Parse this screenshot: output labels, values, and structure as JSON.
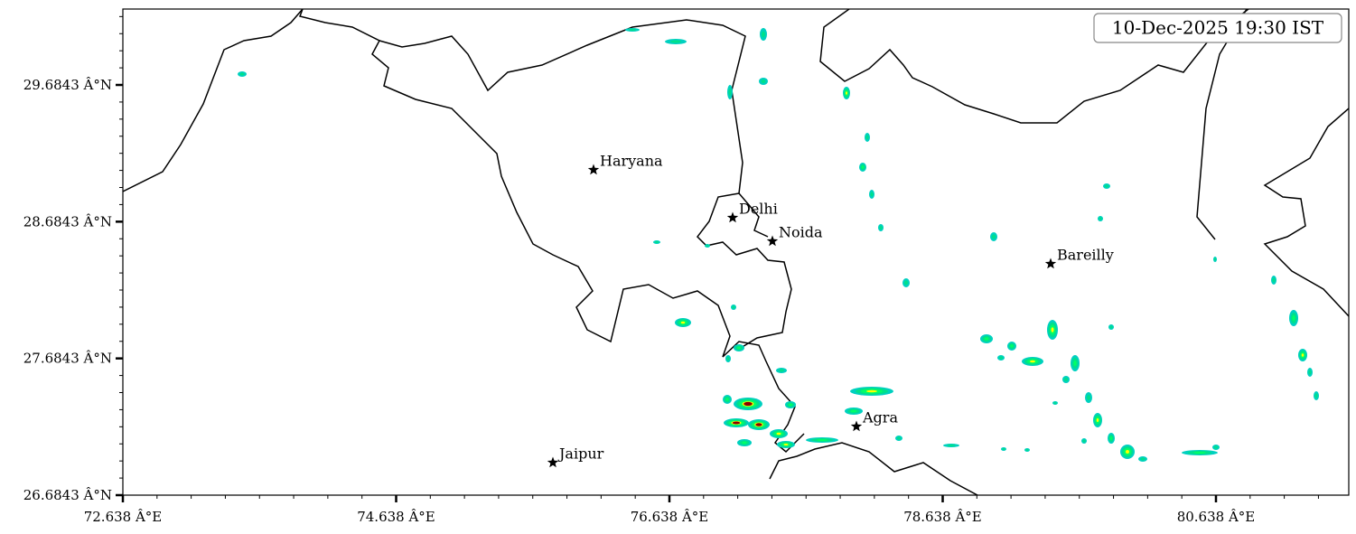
{
  "map": {
    "timestamp": "10-Dec-2025 19:30 IST",
    "cities": [
      {
        "name": "Haryana"
      },
      {
        "name": "Delhi"
      },
      {
        "name": "Noida"
      },
      {
        "name": "Bareilly"
      },
      {
        "name": "Agra"
      },
      {
        "name": "Jaipur"
      }
    ],
    "xlim": [
      72.638,
      81.61
    ],
    "ylim": [
      26.6843,
      30.2394
    ],
    "xticks": [
      {
        "value": 72.638,
        "label": "72.638 Â°E"
      },
      {
        "value": 74.638,
        "label": "74.638 Â°E"
      },
      {
        "value": 76.638,
        "label": "76.638 Â°E"
      },
      {
        "value": 78.638,
        "label": "78.638 Â°E"
      },
      {
        "value": 80.638,
        "label": "80.638 Â°E"
      }
    ],
    "yticks": [
      {
        "value": 26.6843,
        "label": "26.6843 Â°N"
      },
      {
        "value": 27.6843,
        "label": "27.6843 Â°N"
      },
      {
        "value": 28.6843,
        "label": "28.6843 Â°N"
      },
      {
        "value": 29.6843,
        "label": "29.6843 Â°N"
      }
    ]
  }
}
